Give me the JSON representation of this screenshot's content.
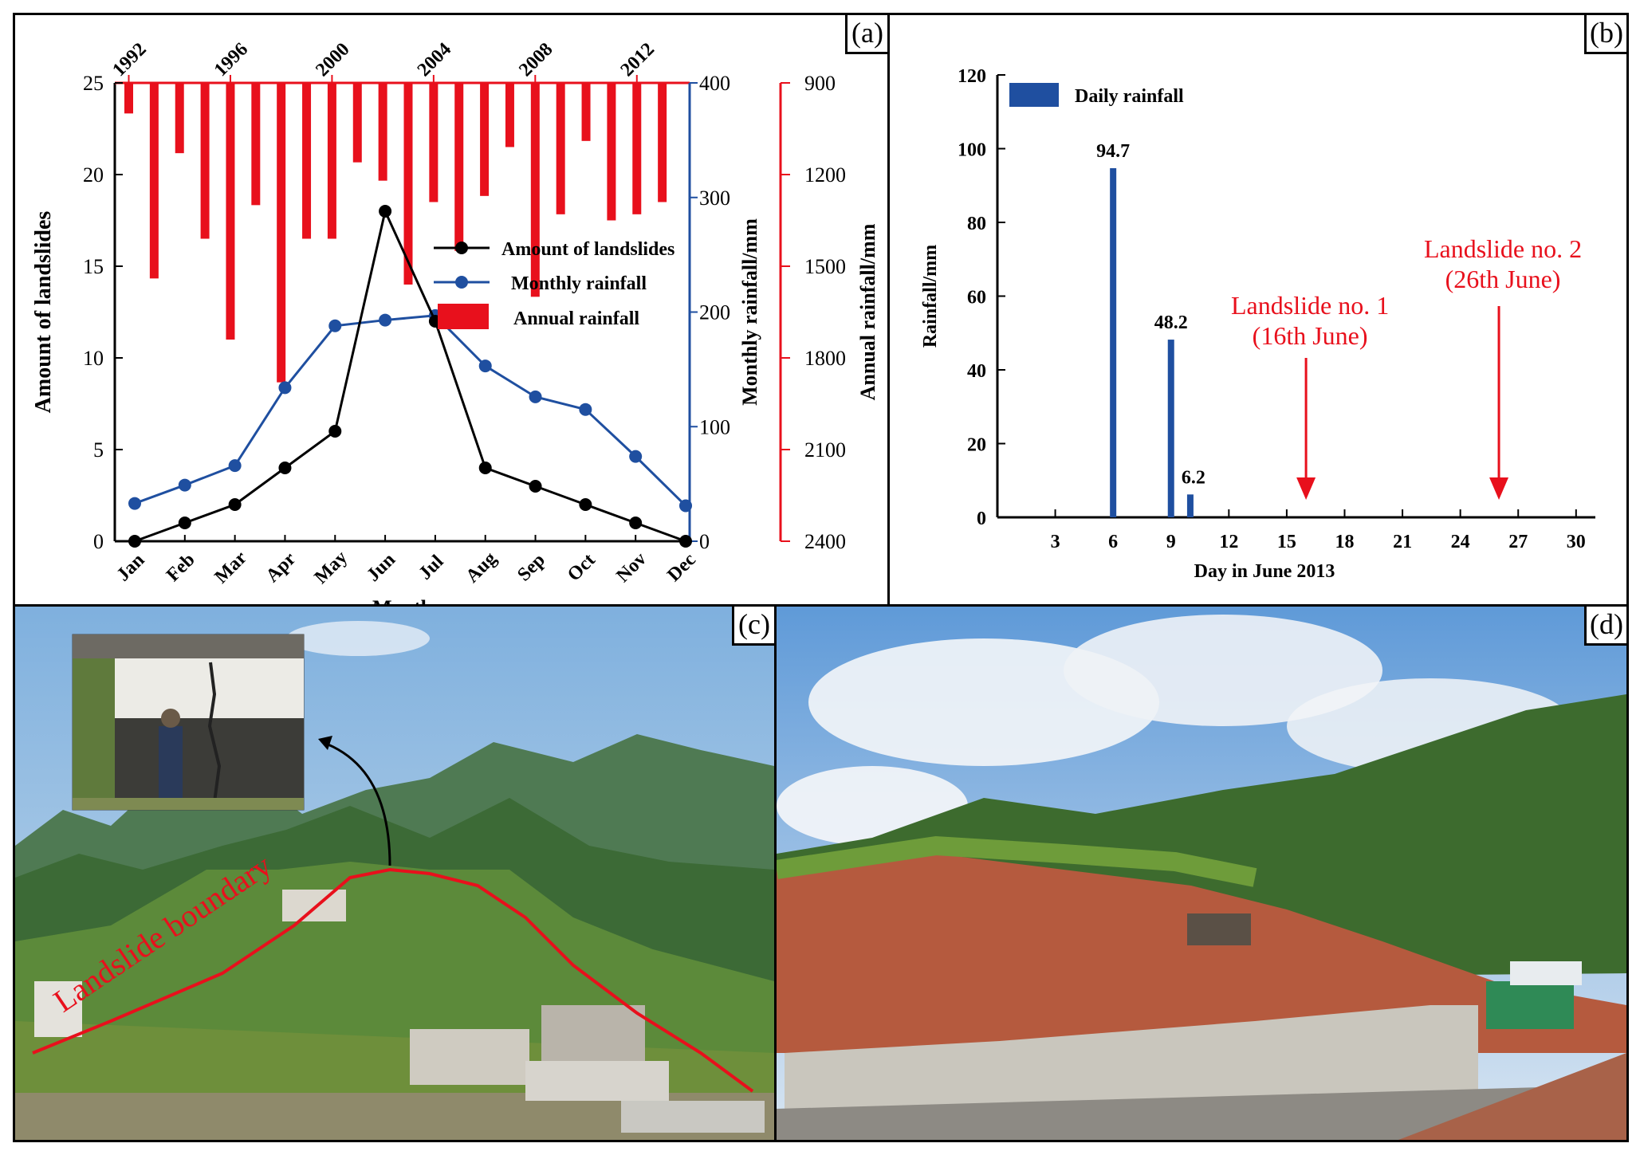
{
  "panels": {
    "a": {
      "label": "(a)"
    },
    "b": {
      "label": "(b)"
    },
    "c": {
      "label": "(c)"
    },
    "d": {
      "label": "(d)"
    }
  },
  "photo_c": {
    "annotation": "Landslide boundary"
  },
  "colors": {
    "landslides": "#000000",
    "monthly": "#1f4fa0",
    "annual": "#e8101c",
    "daily": "#1f4fa0",
    "annotation": "#e8101c"
  },
  "chart_data": [
    {
      "type": "line+bar",
      "panel": "a",
      "xlabel": "Month",
      "categories": [
        "Jan",
        "Feb",
        "Mar",
        "Apr",
        "May",
        "Jun",
        "Jul",
        "Aug",
        "Sep",
        "Oct",
        "Nov",
        "Dec"
      ],
      "ylabel_left": "Amount of landslides",
      "ylim_left": [
        0,
        25
      ],
      "yticks_left": [
        "0",
        "5",
        "10",
        "15",
        "20",
        "25"
      ],
      "ylabel_mid": "Monthly rainfall/mm",
      "ylim_mid": [
        0,
        400
      ],
      "yticks_mid": [
        "0",
        "100",
        "200",
        "300",
        "400"
      ],
      "ylabel_right": "Annual rainfall/mm",
      "ylim_right": [
        900,
        2400
      ],
      "yticks_right": [
        "900",
        "1200",
        "1500",
        "1800",
        "2100",
        "2400"
      ],
      "top_axis_years": [
        "1992",
        "1996",
        "2000",
        "2004",
        "2008",
        "2012"
      ],
      "series": [
        {
          "name": "Amount of landslides",
          "values": [
            0,
            1,
            2,
            4,
            6,
            18,
            12,
            4,
            3,
            2,
            1,
            0
          ]
        },
        {
          "name": "Monthly rainfall",
          "values": [
            33,
            49,
            66,
            134,
            188,
            193,
            197,
            153,
            126,
            115,
            74,
            31
          ]
        }
      ],
      "annual_rainfall": {
        "name": "Annual rainfall",
        "years": [
          1992,
          1993,
          1994,
          1995,
          1996,
          1997,
          1998,
          1999,
          2000,
          2001,
          2002,
          2003,
          2004,
          2005,
          2006,
          2007,
          2008,
          2009,
          2010,
          2011,
          2012,
          2013
        ],
        "values": [
          1000,
          1540,
          1130,
          1410,
          1740,
          1300,
          1880,
          1410,
          1410,
          1160,
          1220,
          1560,
          1290,
          1450,
          1270,
          1110,
          1600,
          1330,
          1090,
          1350,
          1330,
          1290
        ]
      }
    },
    {
      "type": "bar",
      "panel": "b",
      "legend": "Daily rainfall",
      "xlabel": "Day in June 2013",
      "ylabel": "Rainfall/mm",
      "xlim": [
        0,
        31
      ],
      "xticks": [
        "3",
        "6",
        "9",
        "12",
        "15",
        "18",
        "21",
        "24",
        "27",
        "30"
      ],
      "ylim": [
        0,
        120
      ],
      "yticks": [
        "0",
        "20",
        "40",
        "60",
        "80",
        "100",
        "120"
      ],
      "days": [
        6,
        9,
        10
      ],
      "values": [
        94.7,
        48.2,
        6.2
      ],
      "value_labels": [
        "94.7",
        "48.2",
        "6.2"
      ],
      "annotations": [
        {
          "line1": "Landslide no. 1",
          "line2": "(16th June)",
          "day": 16
        },
        {
          "line1": "Landslide no. 2",
          "line2": "(26th June)",
          "day": 26
        }
      ]
    }
  ]
}
